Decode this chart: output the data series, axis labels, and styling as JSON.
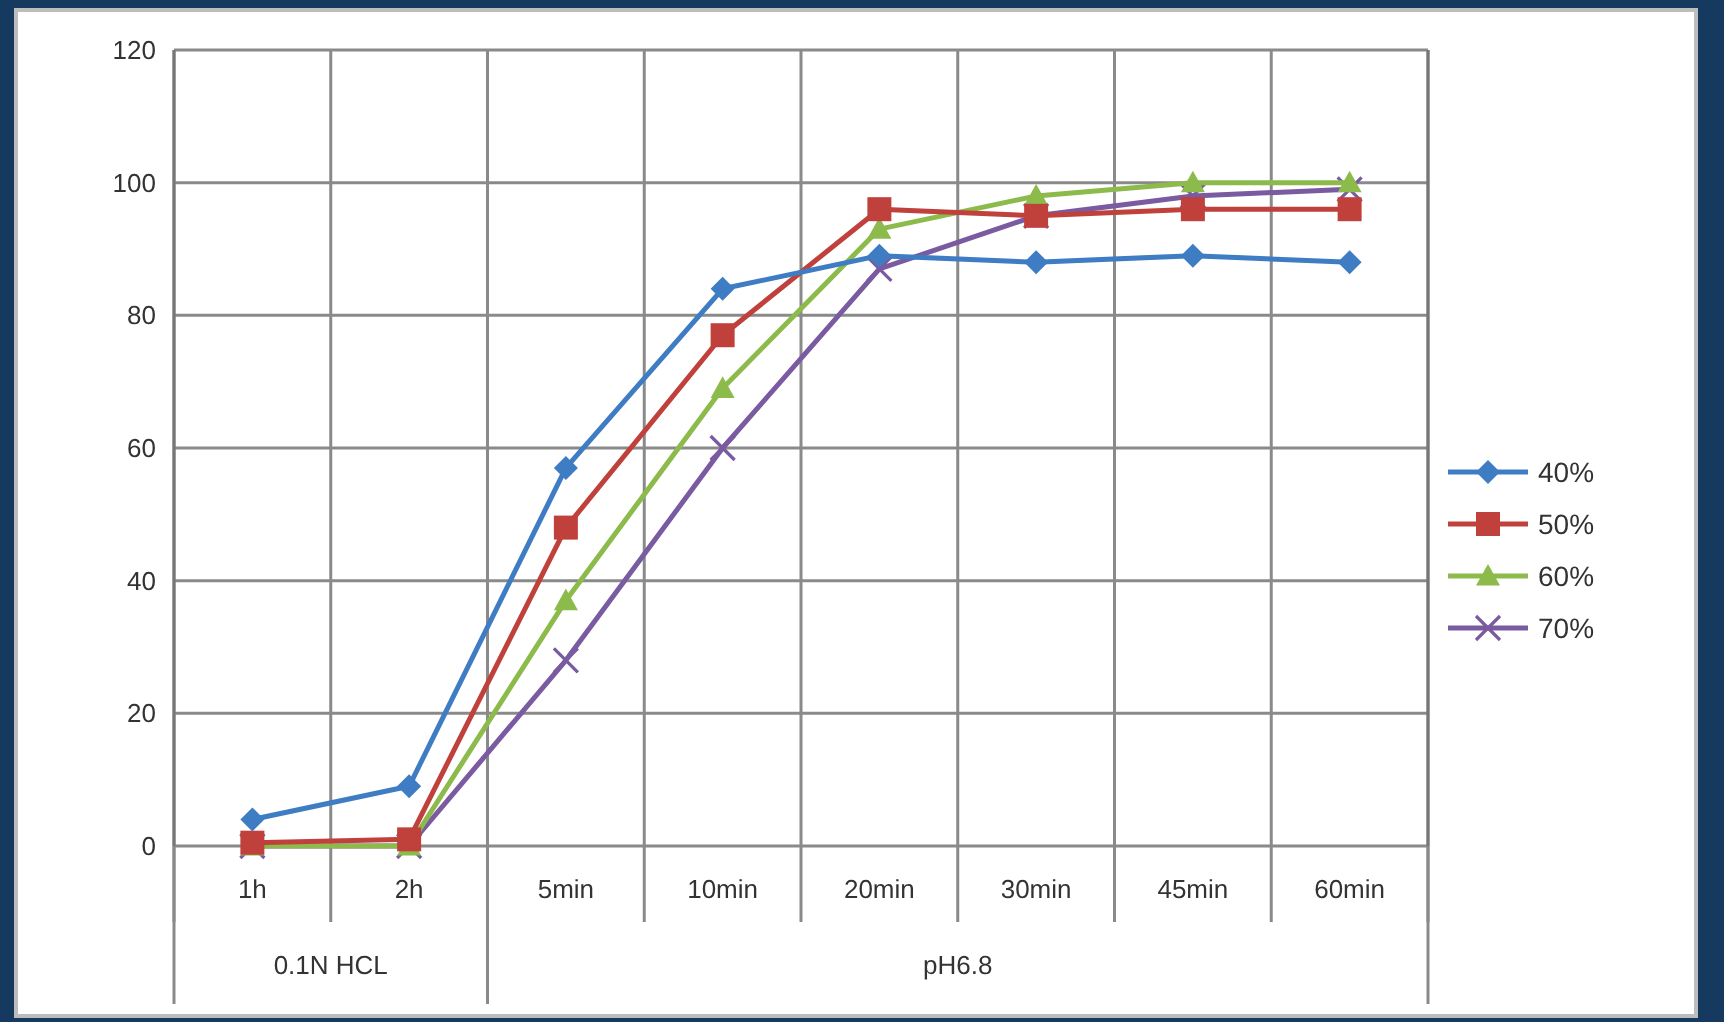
{
  "chart_data": {
    "type": "line",
    "categories": [
      "1h",
      "2h",
      "5min",
      "10min",
      "20min",
      "30min",
      "45min",
      "60min"
    ],
    "ylim": [
      0,
      120
    ],
    "yticks": [
      0,
      20,
      40,
      60,
      80,
      100,
      120
    ],
    "grid": true,
    "legend": "right",
    "series": [
      {
        "name": "40%",
        "color": "#3e7cc4",
        "marker": "diamond",
        "values": [
          4,
          9,
          57,
          84,
          89,
          88,
          89,
          88
        ]
      },
      {
        "name": "50%",
        "color": "#c0403c",
        "marker": "square",
        "values": [
          0.5,
          1,
          48,
          77,
          96,
          95,
          96,
          96
        ]
      },
      {
        "name": "60%",
        "color": "#8cbb4c",
        "marker": "triangle",
        "values": [
          0,
          0,
          37,
          69,
          93,
          98,
          100,
          100
        ]
      },
      {
        "name": "70%",
        "color": "#7a5aa0",
        "marker": "cross",
        "values": [
          0,
          0,
          28,
          60,
          87,
          95,
          98,
          99
        ]
      }
    ],
    "annotations": [
      "0.1N HCL",
      "pH6.8"
    ]
  }
}
